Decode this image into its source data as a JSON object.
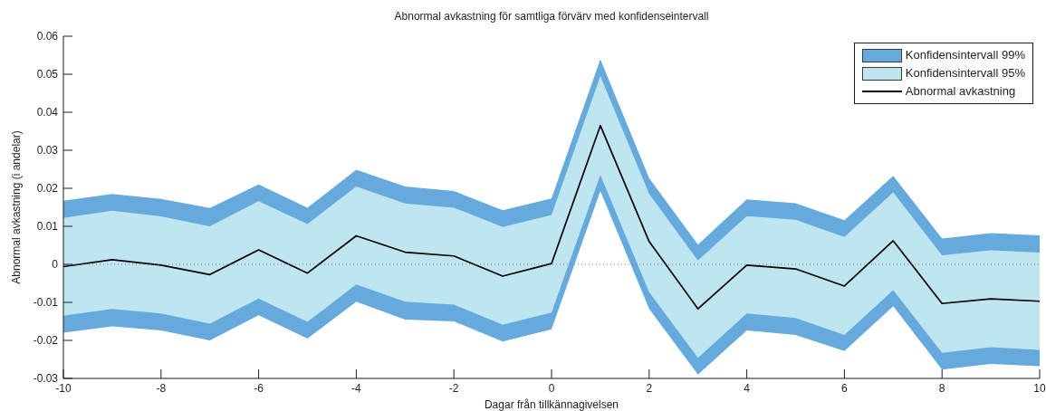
{
  "chart_data": {
    "type": "line",
    "title": "Abnormal avkastning för samtliga förvärv med konfidenseintervall",
    "xlabel": "Dagar från tillkännagivelsen",
    "ylabel": "Abnormal avkastning (i andelar)",
    "x": [
      -10,
      -9,
      -8,
      -7,
      -6,
      -5,
      -4,
      -3,
      -2,
      -1,
      0,
      1,
      2,
      3,
      4,
      5,
      6,
      7,
      8,
      9,
      10
    ],
    "series": [
      {
        "name": "Konfidensintervall 99%",
        "color": "#66aadd",
        "values": [
          null,
          null,
          null,
          null,
          null,
          null,
          null,
          null,
          null,
          null,
          null,
          null,
          null,
          null,
          null,
          null,
          null,
          null,
          null,
          null,
          null
        ],
        "lower": [
          -0.018,
          -0.0163,
          -0.0174,
          -0.02,
          -0.0134,
          -0.0195,
          -0.0098,
          -0.0145,
          -0.015,
          -0.0203,
          -0.0171,
          0.0193,
          -0.0117,
          -0.029,
          -0.0174,
          -0.0186,
          -0.0228,
          -0.011,
          -0.0277,
          -0.0262,
          -0.0268
        ],
        "upper": [
          0.0167,
          0.0185,
          0.0172,
          0.0148,
          0.021,
          0.0149,
          0.0249,
          0.0205,
          0.0193,
          0.0142,
          0.0173,
          0.0539,
          0.0227,
          0.0052,
          0.0171,
          0.0161,
          0.0116,
          0.0233,
          0.0068,
          0.0082,
          0.0076
        ]
      },
      {
        "name": "Konfidensintervall 95%",
        "color": "#bfe6f0",
        "values": [
          null,
          null,
          null,
          null,
          null,
          null,
          null,
          null,
          null,
          null,
          null,
          null,
          null,
          null,
          null,
          null,
          null,
          null,
          null,
          null,
          null
        ],
        "lower": [
          -0.0135,
          -0.0117,
          -0.0129,
          -0.0156,
          -0.009,
          -0.0151,
          -0.0053,
          -0.0098,
          -0.0106,
          -0.0159,
          -0.0127,
          0.0235,
          -0.0073,
          -0.0246,
          -0.0129,
          -0.0141,
          -0.0186,
          -0.0068,
          -0.0233,
          -0.0218,
          -0.0225
        ],
        "upper": [
          0.0122,
          0.0141,
          0.0126,
          0.01,
          0.0166,
          0.0106,
          0.0205,
          0.016,
          0.0149,
          0.0098,
          0.013,
          0.0495,
          0.0185,
          0.001,
          0.0127,
          0.0117,
          0.0072,
          0.0189,
          0.0024,
          0.0037,
          0.0031
        ]
      },
      {
        "name": "Abnormal avkastning",
        "color": "#000000",
        "values": [
          -0.0006,
          0.0012,
          -0.0002,
          -0.0027,
          0.0038,
          -0.0023,
          0.0075,
          0.0032,
          0.0022,
          -0.0031,
          0.0002,
          0.0365,
          0.006,
          -0.0117,
          -0.0002,
          -0.0012,
          -0.0057,
          0.0062,
          -0.0103,
          -0.0091,
          -0.0097
        ]
      }
    ],
    "xlim": [
      -10,
      10
    ],
    "xticks": [
      -10,
      -8,
      -6,
      -4,
      -2,
      0,
      2,
      4,
      6,
      8,
      10
    ],
    "ylim": [
      -0.03,
      0.06
    ],
    "yticks": [
      -0.03,
      -0.02,
      -0.01,
      0,
      0.01,
      0.02,
      0.03,
      0.04,
      0.05,
      0.06
    ],
    "ref_lines": [
      {
        "axis": "y",
        "value": 0,
        "line_style": "dotted"
      }
    ],
    "legend": "top right"
  }
}
